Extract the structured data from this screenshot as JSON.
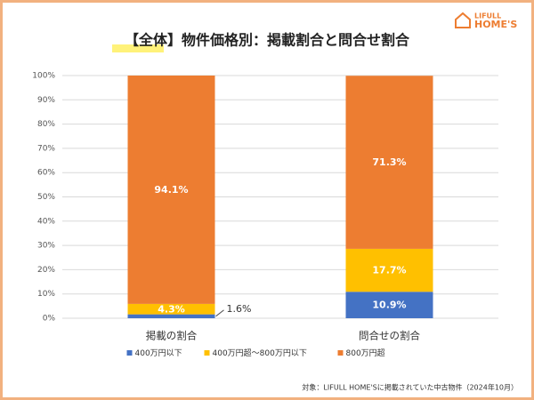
{
  "logo": {
    "line1": "LIFULL",
    "line2": "HOME'S"
  },
  "chart_data": {
    "type": "stacked_bar",
    "title": "【全体】物件価格別：掲載割合と問合せ割合",
    "categories": [
      "掲載の割合",
      "問合せの割合"
    ],
    "series": [
      {
        "name": "400万円以下",
        "color": "#4472c4",
        "values": [
          1.6,
          10.9
        ],
        "value_labels": [
          "1.6%",
          "10.9%"
        ]
      },
      {
        "name": "400万円超～800万円以下",
        "color": "#ffc000",
        "values": [
          4.3,
          17.7
        ],
        "value_labels": [
          "4.3%",
          "17.7%"
        ]
      },
      {
        "name": "800万円超",
        "color": "#ed7d31",
        "values": [
          94.1,
          71.3
        ],
        "value_labels": [
          "94.1%",
          "71.3%"
        ]
      }
    ],
    "ylim": [
      0,
      100
    ],
    "yticks": [
      {
        "value": 0,
        "label": "0%"
      },
      {
        "value": 10,
        "label": "10%"
      },
      {
        "value": 20,
        "label": "20%"
      },
      {
        "value": 30,
        "label": "30%"
      },
      {
        "value": 40,
        "label": "40%"
      },
      {
        "value": 50,
        "label": "50%"
      },
      {
        "value": 60,
        "label": "60%"
      },
      {
        "value": 70,
        "label": "70%"
      },
      {
        "value": 80,
        "label": "80%"
      },
      {
        "value": 90,
        "label": "90%"
      },
      {
        "value": 100,
        "label": "100%"
      }
    ],
    "grid": true,
    "legend": "bottom",
    "note": "対象：LIFULL HOME'Sに掲載されていた中古物件（2024年10月）"
  }
}
